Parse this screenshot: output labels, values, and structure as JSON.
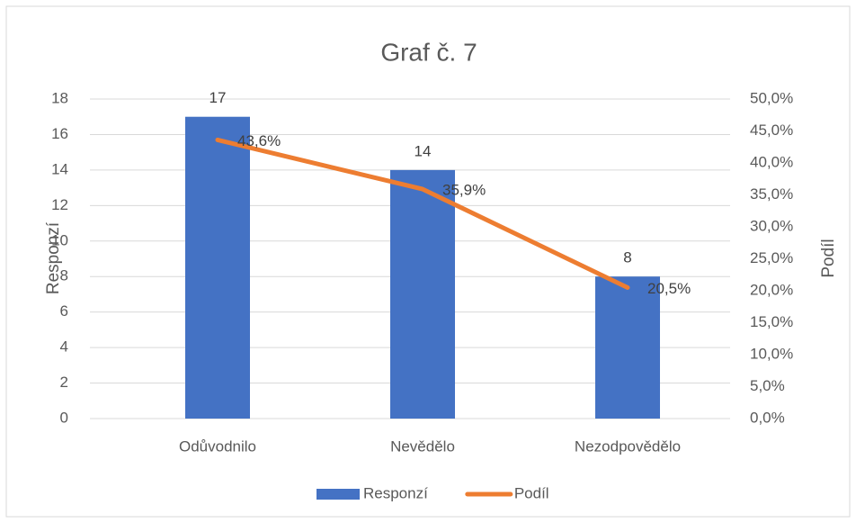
{
  "chart_data": {
    "type": "bar",
    "title": "Graf č. 7",
    "categories": [
      "Odůvodnilo",
      "Nevědělo",
      "Nezodpovědělo"
    ],
    "series": [
      {
        "name": "Responzí",
        "type": "bar",
        "color": "#4472c4",
        "values": [
          17,
          14,
          8
        ]
      },
      {
        "name": "Podíl",
        "type": "line",
        "axis": "y2",
        "color": "#ed7d31",
        "values": [
          43.6,
          35.9,
          20.5
        ],
        "value_labels": [
          "43,6%",
          "35,9%",
          "20,5%"
        ]
      }
    ],
    "y_label": "Responzí",
    "y2_label": "Podíl",
    "ylim": [
      0,
      18
    ],
    "yticks": [
      0,
      2,
      4,
      6,
      8,
      10,
      12,
      14,
      16,
      18
    ],
    "y2lim": [
      0,
      50
    ],
    "y2ticks": [
      {
        "value": 0,
        "label": "0,0%"
      },
      {
        "value": 5,
        "label": "5,0%"
      },
      {
        "value": 10,
        "label": "10,0%"
      },
      {
        "value": 15,
        "label": "15,0%"
      },
      {
        "value": 20,
        "label": "20,0%"
      },
      {
        "value": 25,
        "label": "25,0%"
      },
      {
        "value": 30,
        "label": "30,0%"
      },
      {
        "value": 35,
        "label": "35,0%"
      },
      {
        "value": 40,
        "label": "40,0%"
      },
      {
        "value": 45,
        "label": "45,0%"
      },
      {
        "value": 50,
        "label": "50,0%"
      }
    ],
    "grid": true,
    "legend": "bottom"
  }
}
